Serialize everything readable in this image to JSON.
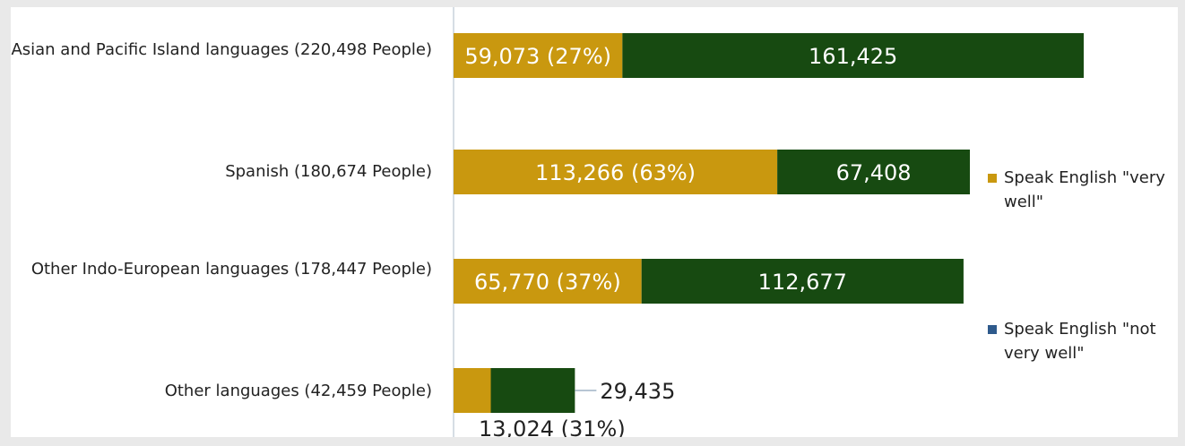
{
  "chart_data": {
    "type": "bar",
    "orientation": "horizontal",
    "stacked": true,
    "categories": [
      "Asian and Pacific Island languages (220,498 People)",
      "Spanish (180,674 People)",
      "Other Indo-European languages (178,447 People)",
      "Other languages (42,459 People)"
    ],
    "series": [
      {
        "name": "Speak English \"very well\"",
        "color": "#c9980f",
        "values": [
          59073,
          113266,
          65770,
          13024
        ],
        "data_labels": [
          "59,073 (27%)",
          "113,266 (63%)",
          "65,770 (37%)",
          "13,024 (31%)"
        ]
      },
      {
        "name": "Speak English \"not very well\"",
        "color": "#174a11",
        "legend_swatch_color": "#2e5a8c",
        "values": [
          161425,
          67408,
          112677,
          29435
        ],
        "data_labels": [
          "161,425",
          "67,408",
          "112,677",
          "29,435"
        ]
      }
    ],
    "legend_position": "right",
    "grid": false
  }
}
